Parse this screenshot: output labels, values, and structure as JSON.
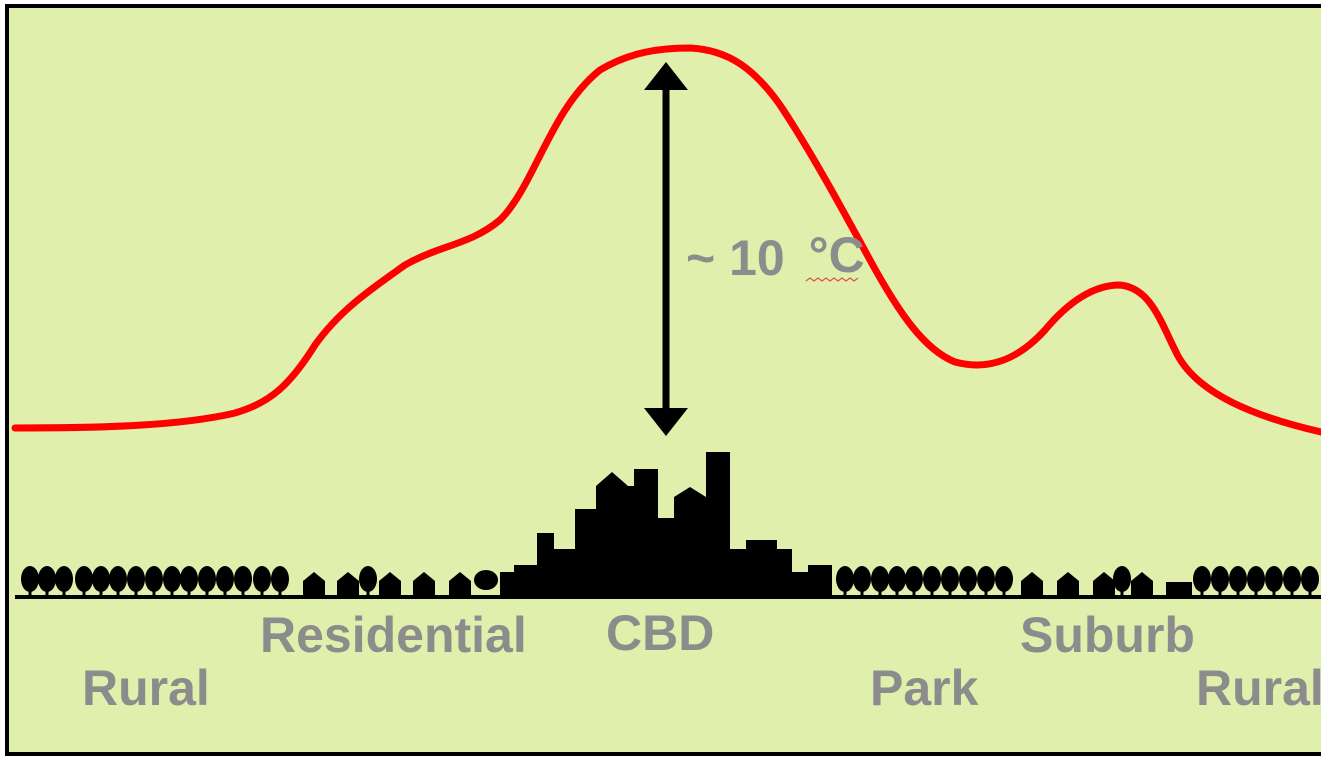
{
  "diagram": {
    "annotation": {
      "prefix": "~ 10",
      "unit": "°C"
    },
    "zones": [
      {
        "id": "rural-left",
        "label": "Rural"
      },
      {
        "id": "residential",
        "label": "Residential"
      },
      {
        "id": "cbd",
        "label": "CBD"
      },
      {
        "id": "park",
        "label": "Park"
      },
      {
        "id": "suburb",
        "label": "Suburb"
      },
      {
        "id": "rural-right",
        "label": "Rural"
      }
    ],
    "colors": {
      "background": "#e0efac",
      "frame": "#000000",
      "temperature_curve": "#ff0000",
      "silhouette": "#000000",
      "label_text": "#8c8c8c"
    }
  }
}
